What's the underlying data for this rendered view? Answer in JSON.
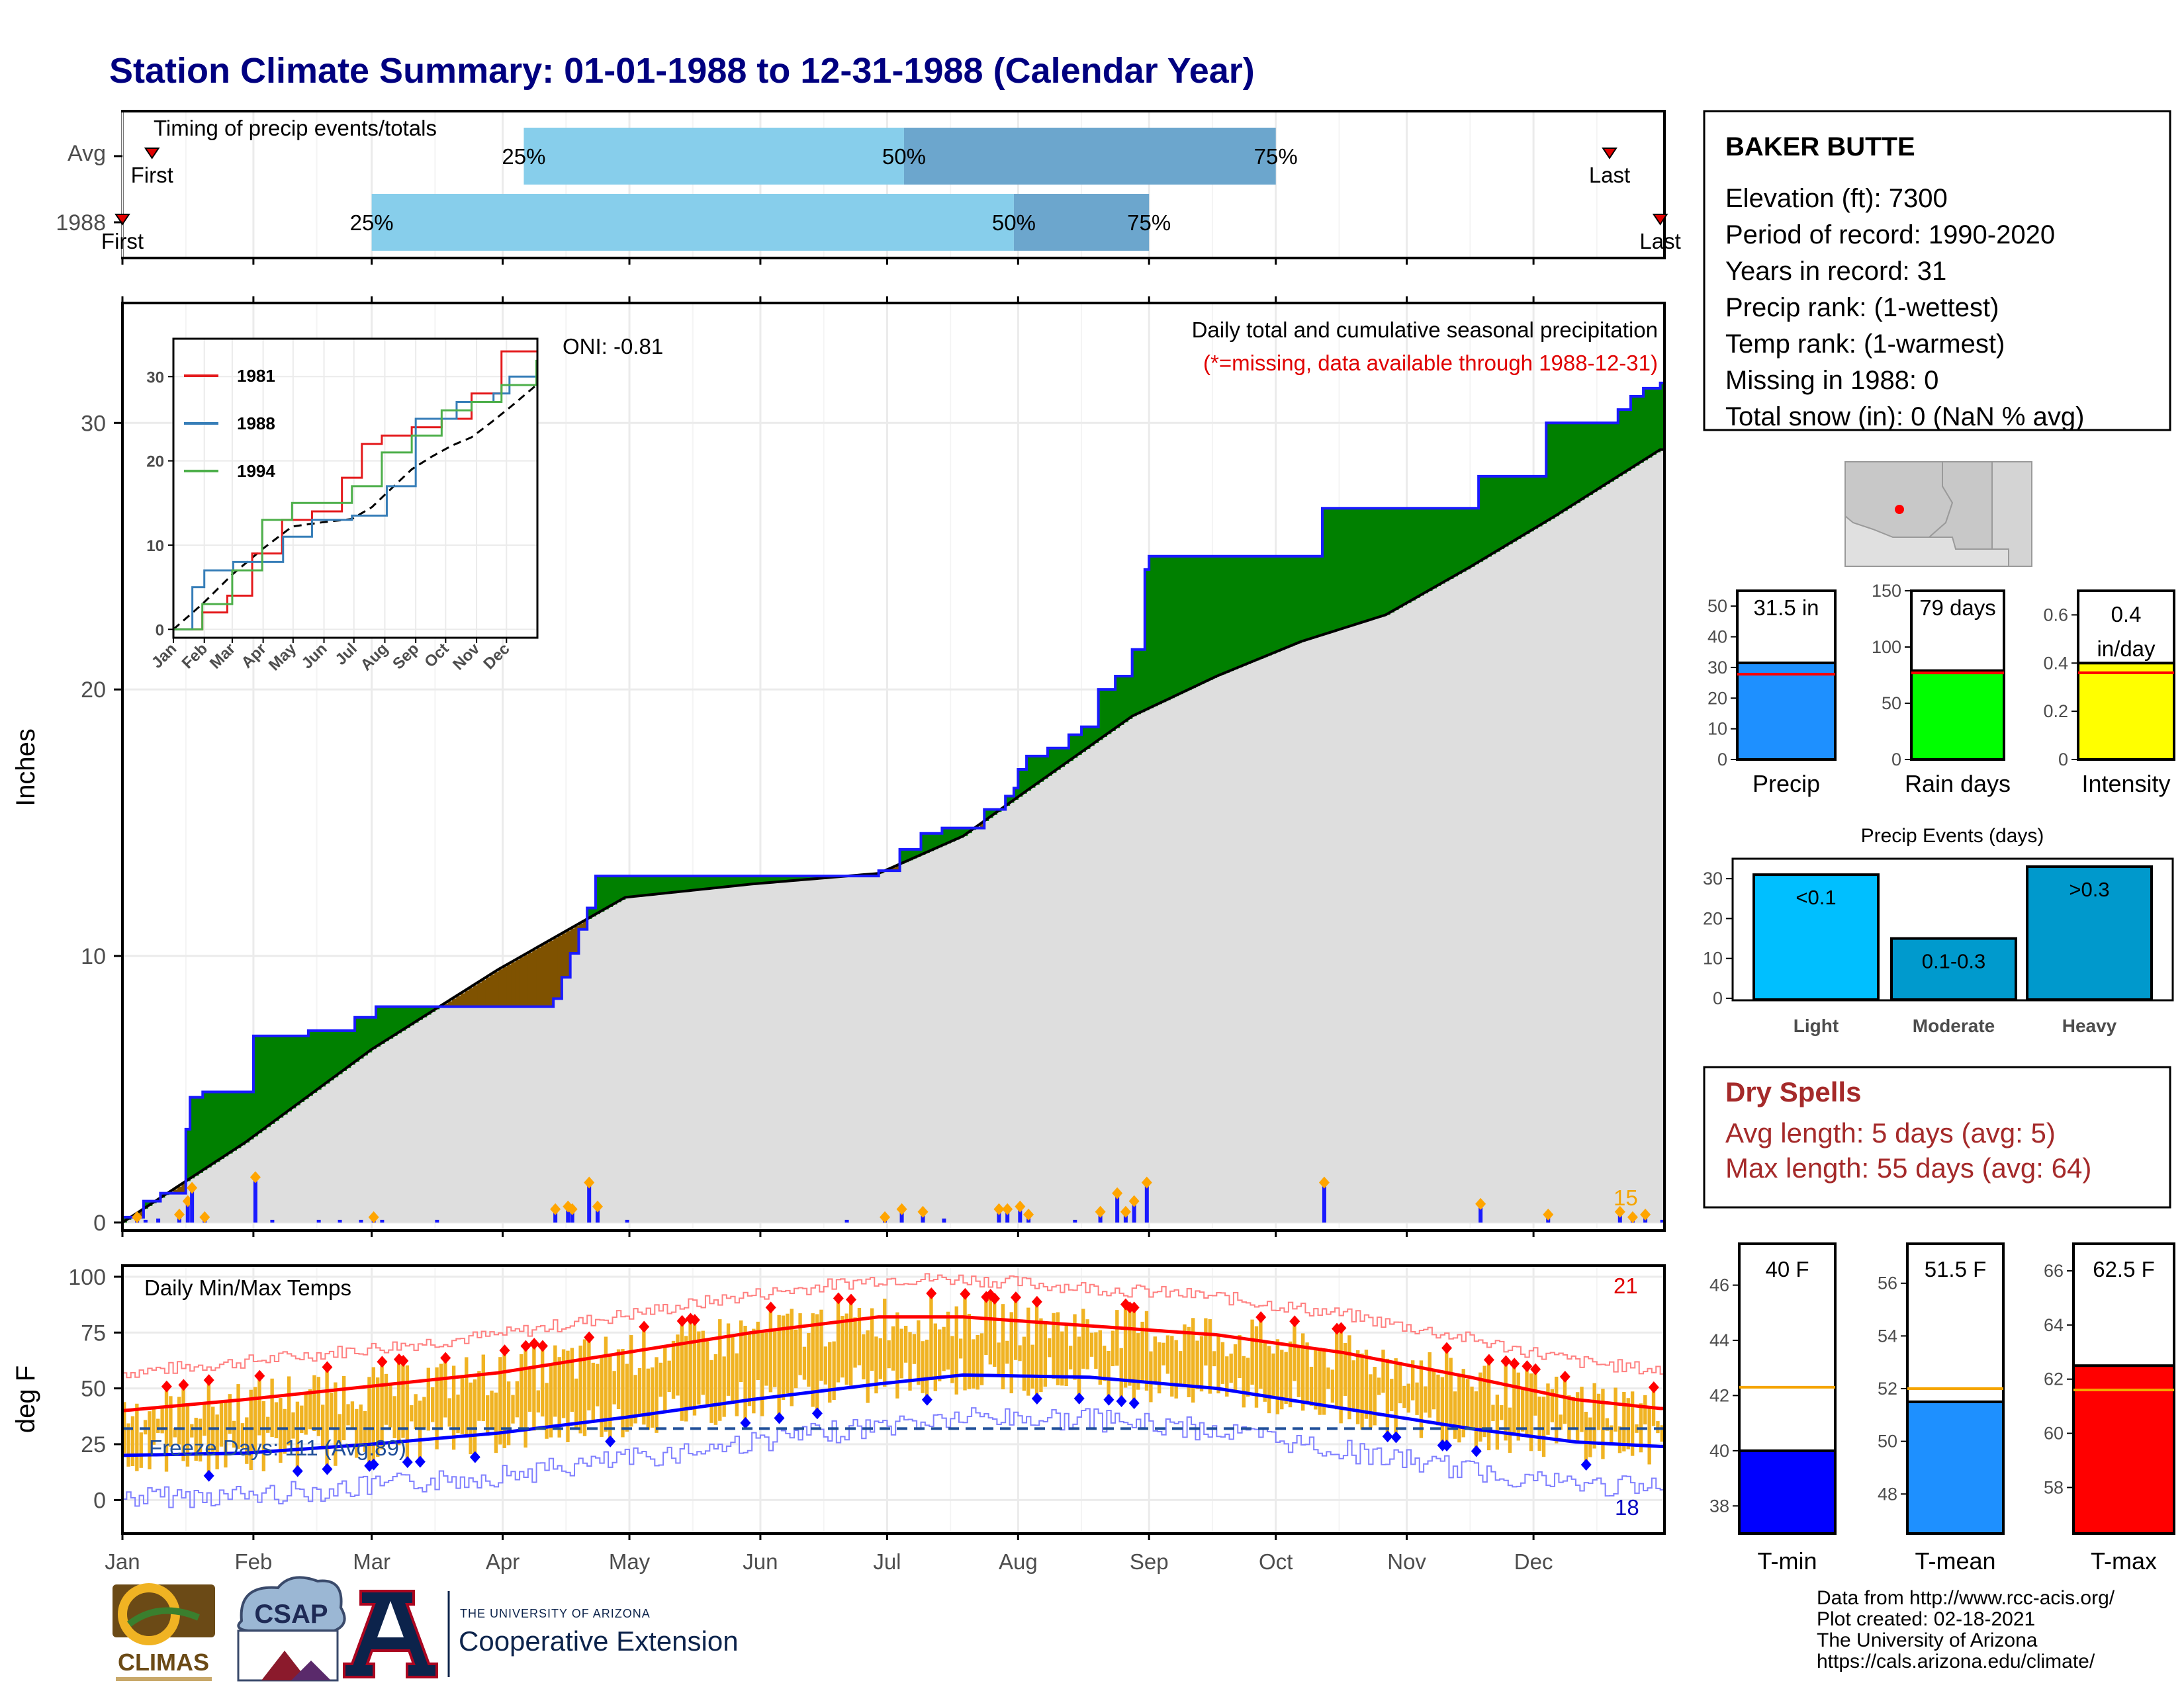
{
  "title": "Station Climate Summary: 01-01-1988 to 12-31-1988 (Calendar Year)",
  "colors": {
    "title": "#000080",
    "precip_blue": "#1a1aff",
    "above_green": "#008000",
    "below_brown": "#7f5200",
    "avg_grey": "#dedede",
    "q_light": "#87ceeb",
    "q_dark": "#6ca6cd",
    "tmax_red": "#ff0000",
    "tmin_blue": "#0000ff",
    "temp_bar": "#f0b323",
    "dry_red": "#a52a2a",
    "rain_green": "#00ff00",
    "intensity_yellow": "#ffff00",
    "precip_bar": "#1e90ff",
    "light_bar": "#00bfff",
    "moderate_bar": "#009acd",
    "heavy_bar": "#0099cc"
  },
  "timing": {
    "label": "Timing of precip events/totals",
    "rows": [
      {
        "name": "Avg",
        "first_day": 8,
        "q25": 96,
        "q50": 186,
        "q75": 274,
        "last_day": 353,
        "first": "First",
        "last": "Last"
      },
      {
        "name": "1988",
        "first_day": 1,
        "q25": 60,
        "q50": 212,
        "q75": 244,
        "last_day": 365,
        "first": "First",
        "last": "Last"
      }
    ],
    "pct_labels": [
      "25%",
      "50%",
      "75%"
    ]
  },
  "station": {
    "name": "BAKER BUTTE",
    "lines": [
      "Elevation (ft): 7300",
      "Period of record: 1990-2020",
      "Years in record: 31",
      "Precip rank:  (1-wettest)",
      "Temp rank:  (1-warmest)",
      "Missing in 1988: 0",
      "Total snow (in): 0 (NaN % avg)"
    ]
  },
  "precip_panel": {
    "ylabel": "Inches",
    "oni": "ONI: -0.81",
    "annotation1": "Daily total and cumulative seasonal precipitation",
    "annotation2": "(*=missing, data available through 1988-12-31)",
    "count": "15",
    "yticks": [
      0,
      10,
      20,
      30
    ]
  },
  "months": [
    "Jan",
    "Feb",
    "Mar",
    "Apr",
    "May",
    "Jun",
    "Jul",
    "Aug",
    "Sep",
    "Oct",
    "Nov",
    "Dec"
  ],
  "inset": {
    "series": [
      "1981",
      "1988",
      "1994"
    ],
    "yticks": [
      0,
      10,
      20,
      30
    ]
  },
  "temp_panel": {
    "ylabel": "deg F",
    "label": "Daily Min/Max Temps",
    "freeze": "Freeze Days: 111 (Avg:89)",
    "hot_count": "21",
    "cold_count": "18",
    "yticks": [
      0,
      25,
      50,
      75,
      100
    ]
  },
  "summary_bars": [
    {
      "name": "Precip",
      "value_label": "31.5 in",
      "value": 31.5,
      "avg": 27.8,
      "ymax": 55,
      "ticks": [
        0,
        10,
        20,
        30,
        40,
        50
      ]
    },
    {
      "name": "Rain days",
      "value_label": "79 days",
      "value": 79,
      "avg": 77,
      "ymax": 150,
      "ticks": [
        0,
        50,
        100,
        150
      ]
    },
    {
      "name": "Intensity",
      "value_label": "0.4 in/day",
      "value": 0.4,
      "avg": 0.36,
      "ymax": 0.7,
      "ticks": [
        0.0,
        0.2,
        0.4,
        0.6
      ]
    }
  ],
  "events": {
    "title": "Precip Events (days)",
    "bars": [
      {
        "name": "Light",
        "label": "<0.1",
        "value": 31
      },
      {
        "name": "Moderate",
        "label": "0.1-0.3",
        "value": 15
      },
      {
        "name": "Heavy",
        "label": ">0.3",
        "value": 33
      }
    ],
    "ticks": [
      0,
      10,
      20,
      30
    ]
  },
  "dry_spells": {
    "title": "Dry Spells",
    "avg": "Avg length: 5 days (avg: 5)",
    "max": "Max length: 55 days (avg: 64)"
  },
  "temp_bars": [
    {
      "name": "T-min",
      "value_label": "40 F",
      "value": 40,
      "avg": 42.3,
      "ymin": 37,
      "ymax": 47.5,
      "ticks": [
        38,
        40,
        42,
        44,
        46
      ]
    },
    {
      "name": "T-mean",
      "value_label": "51.5 F",
      "value": 51.5,
      "avg": 52,
      "ymin": 46.5,
      "ymax": 57.5,
      "ticks": [
        48,
        50,
        52,
        54,
        56
      ]
    },
    {
      "name": "T-max",
      "value_label": "62.5 F",
      "value": 62.5,
      "avg": 61.6,
      "ymin": 56.3,
      "ymax": 67,
      "ticks": [
        58,
        60,
        62,
        64,
        66
      ]
    }
  ],
  "footer": [
    "Data from http://www.rcc-acis.org/",
    "Plot created: 02-18-2021",
    "The University of Arizona",
    "https://cals.arizona.edu/climate/"
  ],
  "logos": {
    "climas": "CLIMAS",
    "csap": "CSAP",
    "ua_small": "THE UNIVERSITY OF ARIZONA",
    "ua_big": "Cooperative Extension",
    "ua_letter": "A"
  },
  "chart_data": {
    "type": "area",
    "title": "Station Climate Summary: 01-01-1988 to 12-31-1988 (Calendar Year)",
    "xlabel": "",
    "ylabel": "Inches",
    "ylim": [
      0,
      34
    ],
    "cumulative_1988_steps": [
      [
        1,
        0.2
      ],
      [
        6,
        0.8
      ],
      [
        10,
        1.1
      ],
      [
        16,
        3.5
      ],
      [
        17,
        4.7
      ],
      [
        20,
        4.9
      ],
      [
        32,
        7.0
      ],
      [
        45,
        7.2
      ],
      [
        56,
        7.7
      ],
      [
        61,
        8.1
      ],
      [
        103,
        8.4
      ],
      [
        105,
        9.2
      ],
      [
        107,
        10.1
      ],
      [
        109,
        11.0
      ],
      [
        111,
        11.8
      ],
      [
        113,
        13.0
      ],
      [
        180,
        13.2
      ],
      [
        185,
        14.0
      ],
      [
        190,
        14.6
      ],
      [
        195,
        14.8
      ],
      [
        205,
        15.5
      ],
      [
        210,
        16.0
      ],
      [
        212,
        16.3
      ],
      [
        213,
        17.0
      ],
      [
        215,
        17.5
      ],
      [
        220,
        17.8
      ],
      [
        225,
        18.3
      ],
      [
        228,
        18.6
      ],
      [
        232,
        20.0
      ],
      [
        236,
        20.5
      ],
      [
        240,
        21.5
      ],
      [
        243,
        24.5
      ],
      [
        244,
        25.0
      ],
      [
        285,
        26.8
      ],
      [
        322,
        28.0
      ],
      [
        338,
        30.0
      ],
      [
        355,
        30.5
      ],
      [
        358,
        31.0
      ],
      [
        361,
        31.3
      ],
      [
        365,
        31.5
      ]
    ],
    "average_cumulative_points": [
      [
        1,
        0.0
      ],
      [
        30,
        3.0
      ],
      [
        60,
        6.5
      ],
      [
        90,
        9.5
      ],
      [
        110,
        11.3
      ],
      [
        120,
        12.2
      ],
      [
        150,
        12.7
      ],
      [
        180,
        13.1
      ],
      [
        200,
        14.5
      ],
      [
        215,
        16.2
      ],
      [
        240,
        19.0
      ],
      [
        260,
        20.5
      ],
      [
        280,
        21.8
      ],
      [
        300,
        22.8
      ],
      [
        320,
        24.6
      ],
      [
        340,
        26.5
      ],
      [
        365,
        29.0
      ]
    ],
    "daily_precip_1988": [
      [
        4,
        0.2
      ],
      [
        6,
        0.1
      ],
      [
        9,
        0.15
      ],
      [
        14,
        0.3
      ],
      [
        16,
        0.8
      ],
      [
        17,
        1.3
      ],
      [
        20,
        0.2
      ],
      [
        32,
        1.7
      ],
      [
        36,
        0.1
      ],
      [
        47,
        0.1
      ],
      [
        52,
        0.1
      ],
      [
        57,
        0.1
      ],
      [
        60,
        0.2
      ],
      [
        62,
        0.1
      ],
      [
        75,
        0.1
      ],
      [
        103,
        0.5
      ],
      [
        106,
        0.6
      ],
      [
        107,
        0.5
      ],
      [
        111,
        1.5
      ],
      [
        113,
        0.6
      ],
      [
        120,
        0.1
      ],
      [
        172,
        0.1
      ],
      [
        181,
        0.2
      ],
      [
        185,
        0.5
      ],
      [
        190,
        0.4
      ],
      [
        195,
        0.15
      ],
      [
        208,
        0.5
      ],
      [
        210,
        0.5
      ],
      [
        213,
        0.6
      ],
      [
        215,
        0.3
      ],
      [
        226,
        0.1
      ],
      [
        232,
        0.4
      ],
      [
        236,
        1.1
      ],
      [
        238,
        0.4
      ],
      [
        240,
        0.8
      ],
      [
        243,
        1.5
      ],
      [
        285,
        1.5
      ],
      [
        322,
        0.7
      ],
      [
        338,
        0.3
      ],
      [
        355,
        0.4
      ],
      [
        358,
        0.2
      ],
      [
        361,
        0.3
      ],
      [
        365,
        0.1
      ]
    ],
    "inset": {
      "type": "line",
      "series": [
        {
          "name": "1981",
          "points": [
            [
              1,
              0
            ],
            [
              30,
              2
            ],
            [
              55,
              4
            ],
            [
              80,
              9
            ],
            [
              110,
              13
            ],
            [
              140,
              14
            ],
            [
              170,
              18
            ],
            [
              190,
              22
            ],
            [
              210,
              23
            ],
            [
              240,
              24
            ],
            [
              270,
              25
            ],
            [
              300,
              28
            ],
            [
              330,
              33
            ],
            [
              365,
              33
            ]
          ]
        },
        {
          "name": "1988",
          "points": [
            [
              1,
              0
            ],
            [
              20,
              5
            ],
            [
              32,
              7
            ],
            [
              61,
              8
            ],
            [
              111,
              11
            ],
            [
              140,
              13
            ],
            [
              180,
              13.5
            ],
            [
              215,
              17
            ],
            [
              244,
              25
            ],
            [
              285,
              27
            ],
            [
              322,
              28
            ],
            [
              338,
              30
            ],
            [
              365,
              31.5
            ]
          ]
        },
        {
          "name": "1994",
          "points": [
            [
              1,
              0
            ],
            [
              30,
              3
            ],
            [
              60,
              7
            ],
            [
              90,
              13
            ],
            [
              120,
              15
            ],
            [
              150,
              15
            ],
            [
              180,
              17
            ],
            [
              210,
              21
            ],
            [
              240,
              23
            ],
            [
              270,
              26
            ],
            [
              300,
              27
            ],
            [
              330,
              29
            ],
            [
              365,
              32
            ]
          ]
        }
      ]
    },
    "temperature": {
      "ylim": [
        -10,
        100
      ],
      "freeze_line": 32,
      "avg_tmax_points": [
        [
          1,
          40
        ],
        [
          30,
          45
        ],
        [
          60,
          51
        ],
        [
          90,
          57
        ],
        [
          120,
          66
        ],
        [
          150,
          75
        ],
        [
          180,
          82
        ],
        [
          200,
          82
        ],
        [
          230,
          78
        ],
        [
          260,
          74
        ],
        [
          290,
          66
        ],
        [
          320,
          55
        ],
        [
          345,
          45
        ],
        [
          365,
          41
        ]
      ],
      "avg_tmin_points": [
        [
          1,
          20
        ],
        [
          30,
          21
        ],
        [
          60,
          25
        ],
        [
          90,
          30
        ],
        [
          120,
          37
        ],
        [
          150,
          45
        ],
        [
          180,
          52
        ],
        [
          200,
          56
        ],
        [
          230,
          55
        ],
        [
          260,
          50
        ],
        [
          290,
          41
        ],
        [
          320,
          32
        ],
        [
          345,
          26
        ],
        [
          365,
          24
        ]
      ]
    }
  }
}
